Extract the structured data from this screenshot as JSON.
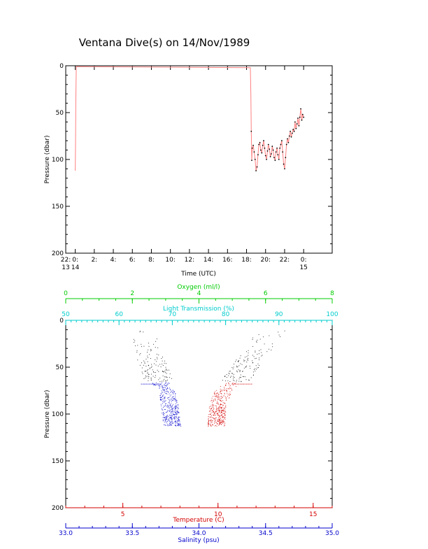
{
  "title": "Ventana Dive(s) on 14/Nov/1989",
  "colors": {
    "black": "#000000",
    "temperature": "#d40000",
    "salinity": "#0000cc",
    "oxygen": "#00cc00",
    "light": "#00cccc",
    "profile_line": "#ff8080"
  },
  "chart_data": [
    {
      "type": "line",
      "xlabel": "Time (UTC)",
      "ylabel": "Pressure (dbar)",
      "y_reversed": true,
      "ylim": [
        0,
        200
      ],
      "xlim": [
        -1,
        27
      ],
      "y_ticks": [
        "0",
        "50",
        "100",
        "150",
        "200"
      ],
      "x_ticks": [
        {
          "value": -1,
          "top": "22:",
          "bottom": "13"
        },
        {
          "value": 0,
          "top": "0:",
          "bottom": "14"
        },
        {
          "value": 2,
          "top": "2:",
          "bottom": ""
        },
        {
          "value": 4,
          "top": "4:",
          "bottom": ""
        },
        {
          "value": 6,
          "top": "6:",
          "bottom": ""
        },
        {
          "value": 8,
          "top": "8:",
          "bottom": ""
        },
        {
          "value": 10,
          "top": "10:",
          "bottom": ""
        },
        {
          "value": 12,
          "top": "12:",
          "bottom": ""
        },
        {
          "value": 14,
          "top": "14:",
          "bottom": ""
        },
        {
          "value": 16,
          "top": "16:",
          "bottom": ""
        },
        {
          "value": 18,
          "top": "18:",
          "bottom": ""
        },
        {
          "value": 20,
          "top": "20:",
          "bottom": ""
        },
        {
          "value": 22,
          "top": "22:",
          "bottom": ""
        },
        {
          "value": 24,
          "top": "0:",
          "bottom": "15"
        }
      ],
      "series": [
        {
          "x": [
            0.0,
            0.03,
            0.06,
            0.1,
            0.12,
            18.4,
            18.45,
            18.5,
            18.55,
            18.6,
            18.7,
            18.8,
            18.9,
            19.0,
            19.1,
            19.2,
            19.3,
            19.4,
            19.5,
            19.6,
            19.7,
            19.8,
            19.9,
            20.0,
            20.1,
            20.2,
            20.3,
            20.4,
            20.5,
            20.6,
            20.7,
            20.8,
            20.9,
            21.0,
            21.1,
            21.2,
            21.3,
            21.4,
            21.5,
            21.6,
            21.7,
            21.8,
            21.9,
            22.0,
            22.1,
            22.2,
            22.3,
            22.4,
            22.5,
            22.6,
            22.7,
            22.8,
            22.9,
            23.0,
            23.1,
            23.2,
            23.3,
            23.4,
            23.5,
            23.6,
            23.7,
            23.8,
            23.9,
            24.0
          ],
          "y": [
            112,
            85,
            40,
            5,
            1,
            2,
            30,
            70,
            101,
            88,
            85,
            92,
            100,
            112,
            108,
            95,
            84,
            82,
            90,
            93,
            85,
            80,
            88,
            96,
            100,
            91,
            84,
            89,
            97,
            94,
            86,
            90,
            98,
            101,
            92,
            88,
            95,
            100,
            88,
            84,
            80,
            92,
            105,
            110,
            98,
            84,
            78,
            82,
            75,
            70,
            76,
            72,
            68,
            70,
            60,
            67,
            62,
            56,
            64,
            55,
            46,
            58,
            52,
            55
          ]
        }
      ]
    },
    {
      "type": "scatter",
      "ylabel": "Pressure (dbar)",
      "y_reversed": true,
      "ylim": [
        0,
        200
      ],
      "y_ticks": [
        "0",
        "50",
        "100",
        "150",
        "200"
      ],
      "axes": {
        "temperature": {
          "label": "Temperature (C)",
          "lim": [
            2.0,
            16.0
          ],
          "ticks": [
            "5",
            "10",
            "15"
          ],
          "tick_values": [
            5,
            10,
            15
          ]
        },
        "salinity": {
          "label": "Salinity (psu)",
          "lim": [
            33.0,
            35.0
          ],
          "ticks": [
            "33.0",
            "33.5",
            "34.0",
            "34.5",
            "35.0"
          ],
          "tick_values": [
            33.0,
            33.5,
            34.0,
            34.5,
            35.0
          ]
        },
        "oxygen": {
          "label": "Oxygen (ml/l)",
          "lim": [
            0,
            8
          ],
          "ticks": [
            "0",
            "2",
            "4",
            "6",
            "8"
          ],
          "tick_values": [
            0,
            2,
            4,
            6,
            8
          ]
        },
        "light": {
          "label": "Light Transmission (%)",
          "lim": [
            50,
            100
          ],
          "ticks": [
            "50",
            "60",
            "70",
            "80",
            "90",
            "100"
          ],
          "tick_values": [
            50,
            60,
            70,
            80,
            90,
            100
          ]
        }
      },
      "series": [
        {
          "name": "Temperature",
          "profile": [
            [
              12.9,
              10
            ],
            [
              12.0,
              35
            ],
            [
              10.9,
              65
            ],
            [
              10.3,
              75
            ],
            [
              10.0,
              90
            ],
            [
              9.9,
              113
            ]
          ]
        },
        {
          "name": "Salinity",
          "profile": [
            [
              33.55,
              10
            ],
            [
              33.63,
              35
            ],
            [
              33.7,
              65
            ],
            [
              33.76,
              75
            ],
            [
              33.78,
              90
            ],
            [
              33.8,
              113
            ]
          ]
        }
      ]
    }
  ]
}
